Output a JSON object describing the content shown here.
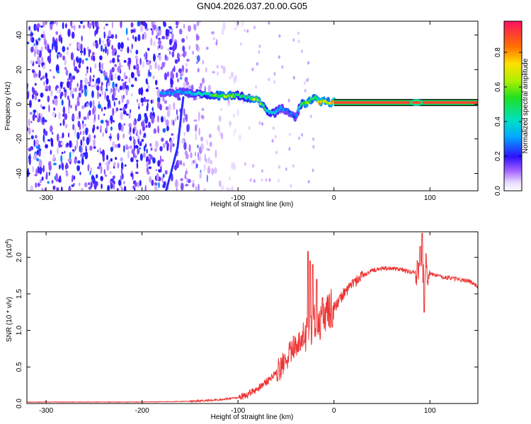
{
  "title": "GN04.2026.037.20.00.G05",
  "chart_data": [
    {
      "type": "heatmap",
      "name": "spectrogram",
      "xlabel": "Height of straight line (km)",
      "ylabel": "Frequency (Hz)",
      "xlim": [
        -320,
        150
      ],
      "ylim": [
        -50,
        48
      ],
      "xticks": [
        -300,
        -200,
        -100,
        0,
        100
      ],
      "yticks": [
        -40,
        -20,
        0,
        20,
        40
      ],
      "colorbar": {
        "label": "Normalized spectral amplitude",
        "range": [
          0,
          0.98
        ],
        "ticks": [
          0.0,
          0.2,
          0.4,
          0.6,
          0.8
        ],
        "tick_labels": [
          "0.0",
          "0.2",
          "0.4",
          "0.6",
          "0.8"
        ]
      },
      "tone_track": {
        "description": "main tone (km, Hz, amplitude)",
        "points": [
          [
            -180,
            6,
            0.3
          ],
          [
            -160,
            7,
            0.35
          ],
          [
            -140,
            6,
            0.4
          ],
          [
            -120,
            5,
            0.6
          ],
          [
            -110,
            5,
            0.65
          ],
          [
            -100,
            5,
            0.45
          ],
          [
            -90,
            4,
            0.5
          ],
          [
            -80,
            3,
            0.7
          ],
          [
            -75,
            0,
            0.55
          ],
          [
            -70,
            -4,
            0.45
          ],
          [
            -62,
            -5,
            0.4
          ],
          [
            -55,
            -2,
            0.35
          ],
          [
            -48,
            -4,
            0.3
          ],
          [
            -40,
            -8,
            0.25
          ],
          [
            -35,
            0,
            0.45
          ],
          [
            -28,
            1,
            0.7
          ],
          [
            -20,
            4,
            0.55
          ],
          [
            -15,
            1,
            0.8
          ],
          [
            -10,
            2,
            0.65
          ],
          [
            -5,
            1,
            0.6
          ],
          [
            0,
            1,
            0.9
          ],
          [
            150,
            1,
            0.9
          ]
        ]
      },
      "secondary_track": {
        "description": "descending line near -160 km",
        "points": [
          [
            -157,
            4
          ],
          [
            -160,
            -10
          ],
          [
            -163,
            -25
          ],
          [
            -170,
            -40
          ],
          [
            -175,
            -50
          ]
        ]
      }
    },
    {
      "type": "line",
      "name": "snr",
      "xlabel": "Height of straight line (km)",
      "ylabel": "SNR (10 * v/v)",
      "multiplier_label": "(x10",
      "multiplier_exp": "4",
      "multiplier_close": ")",
      "xlim": [
        -320,
        150
      ],
      "ylim": [
        0,
        2.35
      ],
      "xticks": [
        -300,
        -200,
        -100,
        0,
        100
      ],
      "yticks": [
        0.0,
        0.5,
        1.0,
        1.5,
        2.0
      ],
      "ytick_labels": [
        "0.0",
        "0.5",
        "1.0",
        "1.5",
        "2.0"
      ],
      "color": "#ee3333",
      "envelope": [
        [
          -320,
          0.02
        ],
        [
          -200,
          0.02
        ],
        [
          -150,
          0.03
        ],
        [
          -120,
          0.05
        ],
        [
          -100,
          0.08
        ],
        [
          -90,
          0.12
        ],
        [
          -80,
          0.2
        ],
        [
          -70,
          0.3
        ],
        [
          -60,
          0.42
        ],
        [
          -50,
          0.6
        ],
        [
          -40,
          0.8
        ],
        [
          -30,
          1.0
        ],
        [
          -20,
          1.1
        ],
        [
          -10,
          1.2
        ],
        [
          0,
          1.3
        ],
        [
          10,
          1.5
        ],
        [
          20,
          1.65
        ],
        [
          30,
          1.75
        ],
        [
          40,
          1.82
        ],
        [
          50,
          1.85
        ],
        [
          60,
          1.85
        ],
        [
          70,
          1.83
        ],
        [
          80,
          1.8
        ],
        [
          90,
          1.78
        ],
        [
          100,
          1.78
        ],
        [
          110,
          1.74
        ],
        [
          120,
          1.72
        ],
        [
          130,
          1.7
        ],
        [
          140,
          1.68
        ],
        [
          150,
          1.6
        ]
      ],
      "spikes": [
        [
          -27,
          2.08
        ],
        [
          -25,
          1.95
        ],
        [
          -22,
          1.9
        ],
        [
          -18,
          1.7
        ],
        [
          -12,
          1.45
        ],
        [
          90,
          2.15
        ],
        [
          92,
          2.33
        ],
        [
          94,
          1.25
        ],
        [
          96,
          2.05
        ]
      ]
    }
  ]
}
